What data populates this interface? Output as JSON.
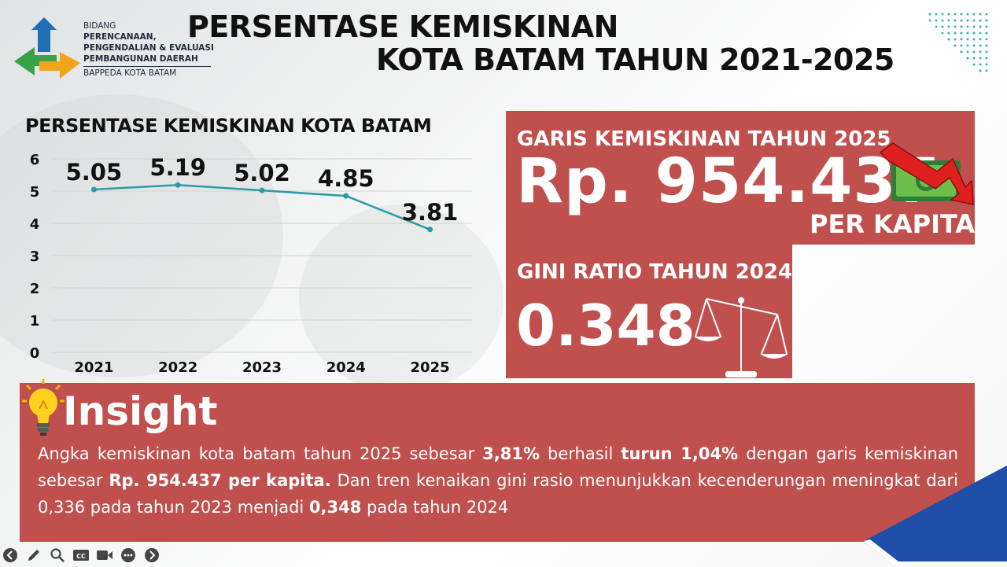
{
  "logo": {
    "line1": "BIDANG",
    "line2": "PERENCANAAN,",
    "line3": "PENGENDALIAN & EVALUASI",
    "line4": "PEMBANGUNAN DAERAH",
    "line5": "BAPPEDA KOTA BATAM"
  },
  "title": {
    "line1": "PERSENTASE KEMISKINAN",
    "line2": "KOTA BATAM TAHUN 2021-2025"
  },
  "chart_data": {
    "type": "line",
    "title": "PERSENTASE KEMISKINAN KOTA BATAM",
    "categories": [
      "2021",
      "2022",
      "2023",
      "2024",
      "2025"
    ],
    "values": [
      5.05,
      5.19,
      5.02,
      4.85,
      3.81
    ],
    "labels": [
      "5.05",
      "5.19",
      "5.02",
      "4.85",
      "3.81"
    ],
    "yticks": [
      "0",
      "1",
      "2",
      "3",
      "4",
      "5",
      "6"
    ],
    "ylim": [
      0,
      6
    ],
    "grid": true,
    "line_color": "#2e9aa6"
  },
  "garis": {
    "label": "GARIS KEMISKINAN TAHUN 2025",
    "value": "Rp. 954.437",
    "unit": "PER KAPITA"
  },
  "gini": {
    "label": "GINI RATIO TAHUN 2024",
    "value": "0.348"
  },
  "insight": {
    "title": "Insight",
    "t1": "Angka kemiskinan kota batam tahun 2025 sebesar ",
    "b1": "3,81%",
    "t2": " berhasil ",
    "b2": "turun 1,04%",
    "t3": " dengan garis kemiskinan sebesar ",
    "b3": "Rp. 954.437 per kapita.",
    "t4": " Dan tren kenaikan gini rasio menunjukkan kecenderungan meningkat dari 0,336 pada tahun 2023 menjadi ",
    "b4": "0,348",
    "t5": " pada tahun 2024"
  },
  "colors": {
    "panel": "#c0504d",
    "line": "#2e9aa6"
  },
  "toolbar": [
    "back-icon",
    "pen-icon",
    "zoom-icon",
    "captions-icon",
    "video-icon",
    "more-icon",
    "forward-icon"
  ]
}
